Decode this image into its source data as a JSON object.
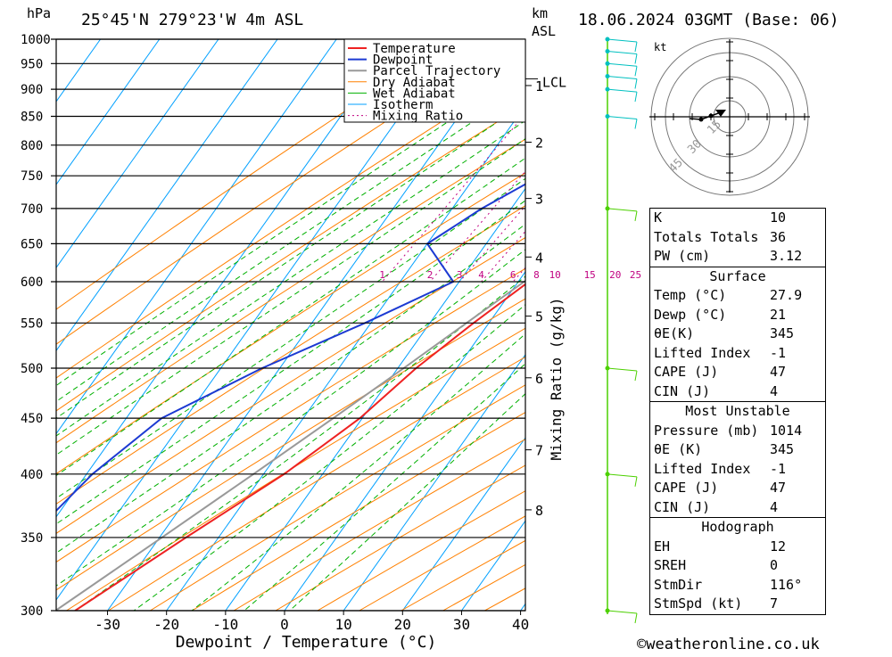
{
  "header": {
    "location": "25°45'N  279°23'W  4m  ASL",
    "datetime": "18.06.2024  03GMT  (Base: 06)",
    "p_unit": "hPa",
    "alt_unit_top": "km",
    "alt_unit_bottom": "ASL"
  },
  "footer": {
    "credit": "©weatheronline.co.uk"
  },
  "colors": {
    "temperature": "#ee2222",
    "dewpoint": "#1c3ad2",
    "parcel": "#999999",
    "dry_adiabat": "#ff8000",
    "wet_adiabat": "#00b000",
    "isotherm": "#00a0ff",
    "mixing_ratio": "#c00080",
    "wind": "#4cd000",
    "wind_low": "#00c0c0"
  },
  "chart_data": {
    "type": "skew-t",
    "xlabel": "Dewpoint / Temperature (°C)",
    "ylabel_left": "hPa",
    "ylabel_right": "Mixing Ratio (g/kg)",
    "xlim": [
      -40,
      40
    ],
    "x_ticks": [
      -30,
      -20,
      -10,
      0,
      10,
      20,
      30,
      40
    ],
    "pressure_levels": [
      300,
      350,
      400,
      450,
      500,
      550,
      600,
      650,
      700,
      750,
      800,
      850,
      900,
      950,
      1000
    ],
    "height_km_labels": [
      {
        "km": "8",
        "p": 371
      },
      {
        "km": "7",
        "p": 421
      },
      {
        "km": "6",
        "p": 490
      },
      {
        "km": "5",
        "p": 558
      },
      {
        "km": "4",
        "p": 632
      },
      {
        "km": "3",
        "p": 715
      },
      {
        "km": "2",
        "p": 805
      },
      {
        "km": "1",
        "p": 907
      }
    ],
    "lcl_label": "LCL",
    "lcl_pressure": 920,
    "mixing_ratio_labels": [
      "1",
      "2",
      "3",
      "4",
      "6",
      "8",
      "10",
      "15",
      "20",
      "25"
    ],
    "legend": [
      "Temperature",
      "Dewpoint",
      "Parcel Trajectory",
      "Dry Adiabat",
      "Wet Adiabat",
      "Isotherm",
      "Mixing Ratio"
    ],
    "legend_position": "top-right",
    "temperature_profile": [
      {
        "p": 1000,
        "t": 27.9
      },
      {
        "p": 950,
        "t": 23.6
      },
      {
        "p": 925,
        "t": 21.7
      },
      {
        "p": 900,
        "t": 20.0
      },
      {
        "p": 850,
        "t": 17.6
      },
      {
        "p": 800,
        "t": 15.8
      },
      {
        "p": 750,
        "t": 12.2
      },
      {
        "p": 700,
        "t": 9.2
      },
      {
        "p": 650,
        "t": 5.6
      },
      {
        "p": 600,
        "t": 1.8
      },
      {
        "p": 550,
        "t": -2.6
      },
      {
        "p": 500,
        "t": -6.9
      },
      {
        "p": 450,
        "t": -10.4
      },
      {
        "p": 400,
        "t": -16.5
      },
      {
        "p": 350,
        "t": -25.5
      },
      {
        "p": 300,
        "t": -35.5
      }
    ],
    "dewpoint_profile": [
      {
        "p": 1000,
        "t": 21.0
      },
      {
        "p": 950,
        "t": 18.5
      },
      {
        "p": 900,
        "t": 16.5
      },
      {
        "p": 850,
        "t": 8.5
      },
      {
        "p": 800,
        "t": -2.0
      },
      {
        "p": 750,
        "t": -9.0
      },
      {
        "p": 700,
        "t": -15.0
      },
      {
        "p": 650,
        "t": -20.0
      },
      {
        "p": 600,
        "t": -11.0
      },
      {
        "p": 550,
        "t": -21.0
      },
      {
        "p": 500,
        "t": -33.0
      },
      {
        "p": 450,
        "t": -44.0
      },
      {
        "p": 400,
        "t": -49.0
      },
      {
        "p": 350,
        "t": -52.0
      },
      {
        "p": 300,
        "t": -56.5
      }
    ],
    "parcel_profile": [
      {
        "p": 1000,
        "t": 27.9
      },
      {
        "p": 920,
        "t": 19.5
      },
      {
        "p": 850,
        "t": 17.2
      },
      {
        "p": 800,
        "t": 15.0
      },
      {
        "p": 750,
        "t": 12.3
      },
      {
        "p": 700,
        "t": 9.2
      },
      {
        "p": 650,
        "t": 5.3
      },
      {
        "p": 600,
        "t": 1.0
      },
      {
        "p": 550,
        "t": -3.8
      },
      {
        "p": 500,
        "t": -9.0
      },
      {
        "p": 450,
        "t": -14.9
      },
      {
        "p": 400,
        "t": -21.7
      },
      {
        "p": 350,
        "t": -29.6
      },
      {
        "p": 300,
        "t": -38.8
      }
    ]
  },
  "wind_barbs": [
    1000,
    975,
    950,
    925,
    900,
    850,
    700,
    500,
    400,
    300
  ],
  "hodograph": {
    "unit": "kt",
    "ring_labels": [
      "15",
      "30",
      "45"
    ]
  },
  "indices": {
    "k_label": "K",
    "k": "10",
    "tt_label": "Totals Totals",
    "tt": "36",
    "pw_label": "PW (cm)",
    "pw": "3.12",
    "surface_title": "Surface",
    "s_temp_label": "Temp (°C)",
    "s_temp": "27.9",
    "s_dewp_label": "Dewp (°C)",
    "s_dewp": "21",
    "s_thetae_label": "θE(K)",
    "s_thetae": "345",
    "s_li_label": "Lifted Index",
    "s_li": "-1",
    "s_cape_label": "CAPE (J)",
    "s_cape": "47",
    "s_cin_label": "CIN (J)",
    "s_cin": "4",
    "mu_title": "Most Unstable",
    "mu_pres_label": "Pressure (mb)",
    "mu_pres": "1014",
    "mu_thetae_label": "θE (K)",
    "mu_thetae": "345",
    "mu_li_label": "Lifted Index",
    "mu_li": "-1",
    "mu_cape_label": "CAPE (J)",
    "mu_cape": "47",
    "mu_cin_label": "CIN (J)",
    "mu_cin": "4",
    "hodo_title": "Hodograph",
    "eh_label": "EH",
    "eh": "12",
    "sreh_label": "SREH",
    "sreh": "0",
    "stmdir_label": "StmDir",
    "stmdir": "116°",
    "stmspd_label": "StmSpd (kt)",
    "stmspd": "7"
  }
}
